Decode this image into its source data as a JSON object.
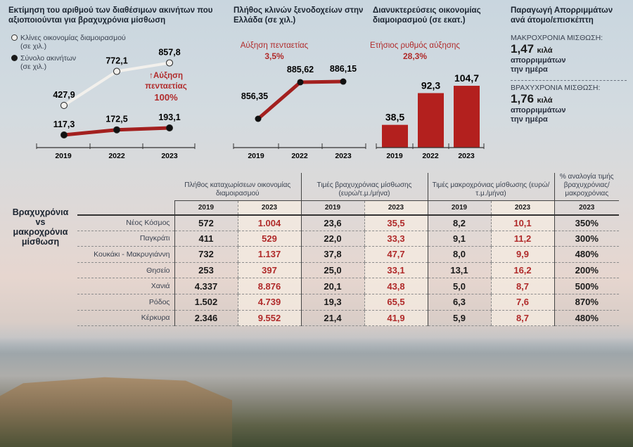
{
  "chart_data": [
    {
      "type": "line",
      "title": "Εκτίμηση του αριθμού των διαθέσιμων ακινήτων που αξιοποιούνται για βραχυχρόνια μίσθωση",
      "categories": [
        "2019",
        "2022",
        "2023"
      ],
      "series": [
        {
          "name": "Κλίνες οικονομίας διαμοιρασμού",
          "unit": "(σε χιλ.)",
          "values": [
            427.9,
            772.1,
            857.8
          ],
          "labels": [
            "427,9",
            "772,1",
            "857,8"
          ],
          "color": "#f2f0ec"
        },
        {
          "name": "Σύνολο ακινήτων",
          "unit": "(σε χιλ.)",
          "values": [
            117.3,
            172.5,
            193.1
          ],
          "labels": [
            "117,3",
            "172,5",
            "193,1"
          ],
          "color": "#a3201f"
        }
      ],
      "annotation": {
        "text": "Αύξηση πενταετίας",
        "value": "100%"
      }
    },
    {
      "type": "line",
      "title": "Πλήθος κλινών ξενοδοχείων στην Ελλάδα (σε χιλ.)",
      "categories": [
        "2019",
        "2022",
        "2023"
      ],
      "values": [
        856.35,
        885.62,
        886.15
      ],
      "labels": [
        "856,35",
        "885,62",
        "886,15"
      ],
      "annotation": {
        "text": "Αύξηση πενταετίας",
        "value": "3,5%"
      }
    },
    {
      "type": "bar",
      "title": "Διανυκτερεύσεις οικονομίας διαμοιρασμού (σε εκατ.)",
      "categories": [
        "2019",
        "2022",
        "2023"
      ],
      "values": [
        38.5,
        92.3,
        104.7
      ],
      "labels": [
        "38,5",
        "92,3",
        "104,7"
      ],
      "color": "#b3201e",
      "annotation": {
        "text": "Ετήσιος ρυθμός αύξησης",
        "value": "28,3%"
      }
    },
    {
      "type": "table",
      "title": "Βραχυχρόνια vs μακροχρόνια μίσθωση",
      "groups": [
        "Πλήθος καταχωρίσεων οικονομίας διαμοιρασμού",
        "Τιμές βραχυχρόνιας μίσθωσης (ευρώ/τ.μ./μήνα)",
        "Τιμές μακροχρόνιας μίσθωσης (ευρώ/τ.μ./μήνα)",
        "% αναλογία τιμής βραχυχρόνιας/ μακροχρόνιας"
      ],
      "years": [
        "2019",
        "2023",
        "2019",
        "2023",
        "2019",
        "2023",
        "2023"
      ],
      "rows": [
        {
          "area": "Νέος Κόσμος",
          "values": [
            "572",
            "1.004",
            "23,6",
            "35,5",
            "8,2",
            "10,1",
            "350%"
          ]
        },
        {
          "area": "Παγκράτι",
          "values": [
            "411",
            "529",
            "22,0",
            "33,3",
            "9,1",
            "11,2",
            "300%"
          ]
        },
        {
          "area": "Κουκάκι - Μακρυγιάννη",
          "values": [
            "732",
            "1.137",
            "37,8",
            "47,7",
            "8,0",
            "9,9",
            "480%"
          ]
        },
        {
          "area": "Θησείο",
          "values": [
            "253",
            "397",
            "25,0",
            "33,1",
            "13,1",
            "16,2",
            "200%"
          ]
        },
        {
          "area": "Χανιά",
          "values": [
            "4.337",
            "8.876",
            "20,1",
            "43,8",
            "5,0",
            "8,7",
            "500%"
          ]
        },
        {
          "area": "Ρόδος",
          "values": [
            "1.502",
            "4.739",
            "19,3",
            "65,5",
            "6,3",
            "7,6",
            "870%"
          ]
        },
        {
          "area": "Κέρκυρα",
          "values": [
            "2.346",
            "9.552",
            "21,4",
            "41,9",
            "5,9",
            "8,7",
            "480%"
          ]
        }
      ]
    }
  ],
  "waste": {
    "title": "Παραγωγή Απορριμμάτων ανά άτομο/επισκέπτη",
    "items": [
      {
        "caption": "ΜΑΚΡΟΧΡΟΝΙΑ ΜΙΣΘΩΣΗ:",
        "value": "1,47",
        "unit": "κιλά",
        "sub1": "απορριμμάτων",
        "sub2": "την ημέρα"
      },
      {
        "caption": "ΒΡΑΧΥΧΡΟΝΙΑ ΜΙΣΘΩΣΗ:",
        "value": "1,76",
        "unit": "κιλά",
        "sub1": "απορριμμάτων",
        "sub2": "την ημέρα"
      }
    ]
  }
}
